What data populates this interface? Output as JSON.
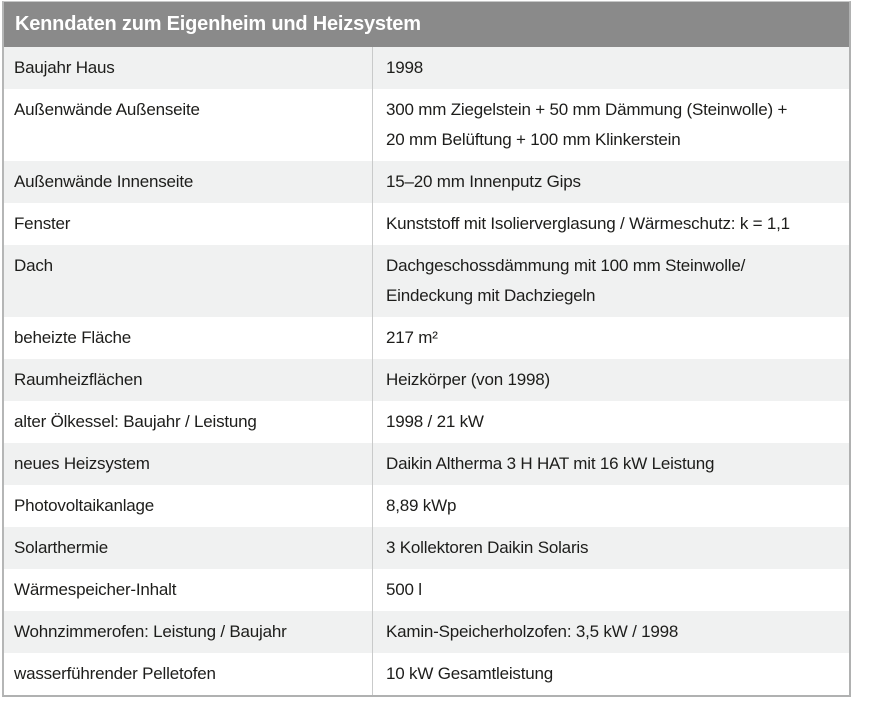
{
  "table": {
    "title": "Kenndaten zum Eigenheim und Heizsystem",
    "colors": {
      "header_bg": "#8a8a8a",
      "header_text": "#ffffff",
      "row_shaded_bg": "#f0f1f1",
      "row_white_bg": "#ffffff",
      "outer_border": "#b0b1b1",
      "column_divider": "#c9caca",
      "body_text": "#1d1d1b"
    },
    "rows": [
      {
        "label": "Baujahr Haus",
        "value": "1998"
      },
      {
        "label": "Außenwände Außenseite",
        "value": [
          "300 mm Ziegelstein + 50 mm Dämmung (Steinwolle) +",
          "20 mm Belüftung + 100 mm Klinkerstein"
        ]
      },
      {
        "label": "Außenwände Innenseite",
        "value": "15–20 mm Innenputz Gips"
      },
      {
        "label": "Fenster",
        "value": "Kunststoff mit Isolierverglasung / Wärmeschutz: k = 1,1"
      },
      {
        "label": "Dach",
        "value": [
          "Dachgeschossdämmung mit 100 mm Steinwolle/",
          "Eindeckung mit Dachziegeln"
        ]
      },
      {
        "label": "beheizte Fläche",
        "value": "217 m²"
      },
      {
        "label": "Raumheizflächen",
        "value": "Heizkörper (von 1998)"
      },
      {
        "label": "alter Ölkessel: Baujahr / Leistung",
        "value": "1998 / 21 kW"
      },
      {
        "label": "neues Heizsystem",
        "value": "Daikin Altherma 3 H HAT mit 16 kW Leistung"
      },
      {
        "label": "Photovoltaikanlage",
        "value": "8,89 kWp"
      },
      {
        "label": "Solarthermie",
        "value": "3 Kollektoren Daikin Solaris"
      },
      {
        "label": "Wärmespeicher-Inhalt",
        "value": "500 l"
      },
      {
        "label": "Wohnzimmerofen: Leistung / Baujahr",
        "value": "Kamin-Speicherholzofen: 3,5 kW / 1998"
      },
      {
        "label": "wasserführender Pelletofen",
        "value": "10 kW Gesamtleistung"
      }
    ]
  }
}
